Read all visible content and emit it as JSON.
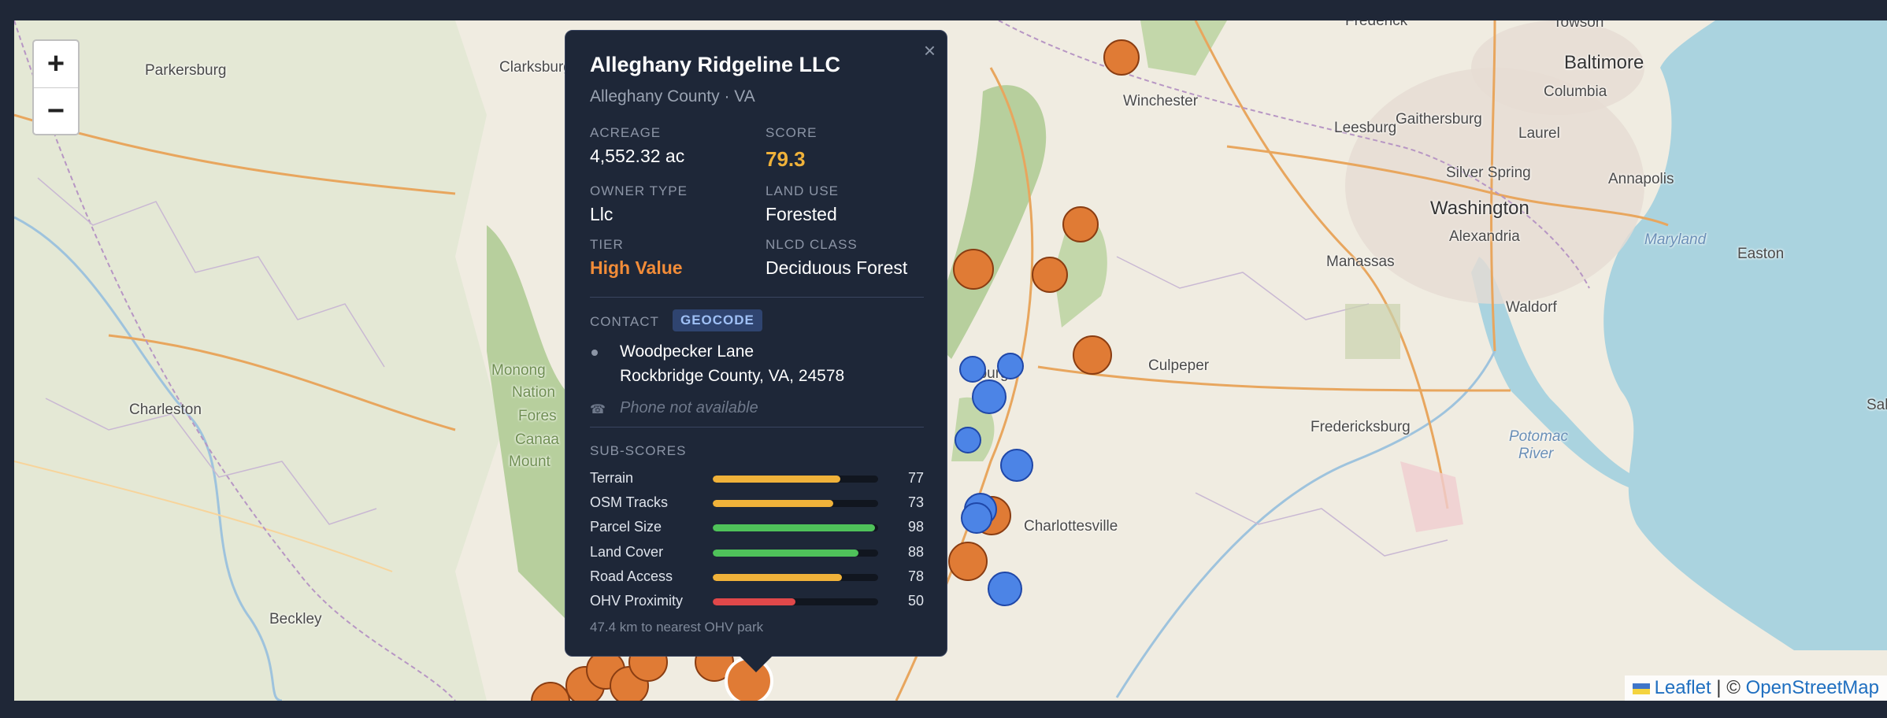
{
  "map": {
    "places": [
      {
        "name": "Parkersburg",
        "cls": ""
      },
      {
        "name": "Clarksburg",
        "cls": ""
      },
      {
        "name": "Winchester",
        "cls": ""
      },
      {
        "name": "Baltimore",
        "cls": "big"
      },
      {
        "name": "Columbia",
        "cls": ""
      },
      {
        "name": "Leesburg",
        "cls": ""
      },
      {
        "name": "Gaithersburg",
        "cls": ""
      },
      {
        "name": "Laurel",
        "cls": ""
      },
      {
        "name": "Silver Spring",
        "cls": ""
      },
      {
        "name": "Annapolis",
        "cls": ""
      },
      {
        "name": "Washington",
        "cls": "big"
      },
      {
        "name": "Alexandria",
        "cls": ""
      },
      {
        "name": "Maryland",
        "cls": "it"
      },
      {
        "name": "Easton",
        "cls": ""
      },
      {
        "name": "Manassas",
        "cls": ""
      },
      {
        "name": "Waldorf",
        "cls": ""
      },
      {
        "name": "Culpeper",
        "cls": ""
      },
      {
        "name": "Fredericksburg",
        "cls": ""
      },
      {
        "name": "Potomac",
        "cls": "it"
      },
      {
        "name": "River",
        "cls": "it"
      },
      {
        "name": "Charleston",
        "cls": ""
      },
      {
        "name": "Charlottesville",
        "cls": ""
      },
      {
        "name": "Beckley",
        "cls": ""
      },
      {
        "name": "Monong",
        "cls": "green"
      },
      {
        "name": "Nation",
        "cls": "green"
      },
      {
        "name": "Fores",
        "cls": "green"
      },
      {
        "name": "Canaa",
        "cls": "green"
      },
      {
        "name": "Mount",
        "cls": "green"
      },
      {
        "name": "Sal",
        "cls": ""
      },
      {
        "name": "Frederick",
        "cls": ""
      },
      {
        "name": "Towson",
        "cls": ""
      },
      {
        "name": "nburg",
        "cls": ""
      }
    ],
    "zoom_in": "+",
    "zoom_out": "−",
    "attribution": {
      "leaflet": "Leaflet",
      "sep": " | © ",
      "osm": "OpenStreetMap"
    },
    "colors": {
      "high_value": "#e07b35",
      "other": "#4c84e6"
    }
  },
  "popup": {
    "close": "×",
    "title": "Alleghany Ridgeline LLC",
    "subtitle": "Alleghany County · VA",
    "acreage_label": "ACREAGE",
    "acreage": "4,552.32 ac",
    "score_label": "SCORE",
    "score": "79.3",
    "owner_type_label": "OWNER TYPE",
    "owner_type": "Llc",
    "land_use_label": "LAND USE",
    "land_use": "Forested",
    "tier_label": "TIER",
    "tier": "High Value",
    "nlcd_label": "NLCD CLASS",
    "nlcd": "Deciduous Forest",
    "contact_label": "CONTACT",
    "contact_badge": "GEOCODE",
    "address_line1": "Woodpecker Lane",
    "address_line2": "Rockbridge County, VA, 24578",
    "phone_icon": "☎",
    "phone": "Phone not available",
    "subscores_label": "SUB-SCORES",
    "subscores": [
      {
        "name": "Terrain",
        "value": 77,
        "color": "#f0b23a"
      },
      {
        "name": "OSM Tracks",
        "value": 73,
        "color": "#f0b23a"
      },
      {
        "name": "Parcel Size",
        "value": 98,
        "color": "#4fc25a"
      },
      {
        "name": "Land Cover",
        "value": 88,
        "color": "#4fc25a"
      },
      {
        "name": "Road Access",
        "value": 78,
        "color": "#f0b23a"
      },
      {
        "name": "OHV Proximity",
        "value": 50,
        "color": "#e0484a"
      }
    ],
    "footnote": "47.4 km to nearest OHV park"
  }
}
